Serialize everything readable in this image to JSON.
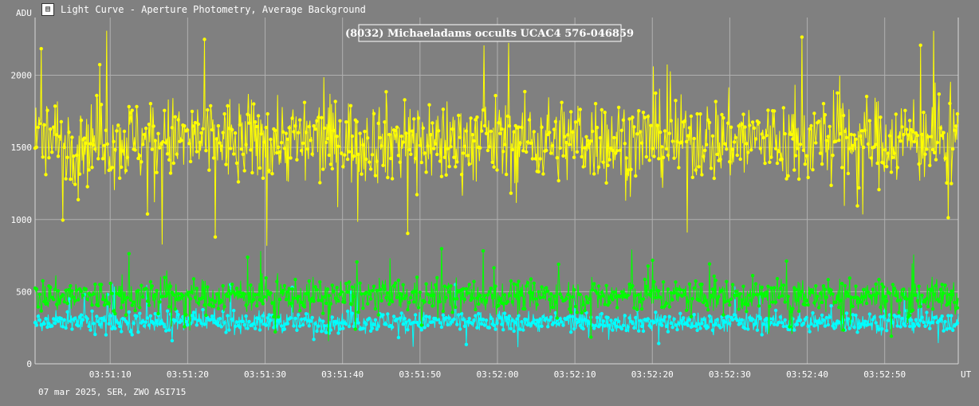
{
  "window": {
    "title": "Light Curve - Aperture Photometry, Average Background",
    "icon": "light-curve-app-icon"
  },
  "footer": {
    "text": "07 mar 2025, SER, ZWO ASI715"
  },
  "colors": {
    "background": "#808080",
    "grid": "#b0b0b0",
    "target": "#ffff00",
    "comparison": "#00ff00",
    "background_series": "#00ffff"
  },
  "chart_data": {
    "type": "line",
    "title": "(8032) Michaeladams occults UCAC4 576-046859",
    "ylabel": "ADU",
    "xlabel": "UT",
    "ylim": [
      0,
      2400
    ],
    "yticks": [
      0,
      500,
      1000,
      1500,
      2000
    ],
    "xlim": [
      "03:51:00.3",
      "03:52:59.5"
    ],
    "xticks": [
      "03:51:10",
      "03:51:20",
      "03:51:30",
      "03:51:40",
      "03:51:50",
      "03:52:00",
      "03:52:10",
      "03:52:20",
      "03:52:30",
      "03:52:40",
      "03:52:50"
    ],
    "grid": true,
    "series": [
      {
        "mean": 1550,
        "spread": 230,
        "spike_range": [
          800,
          2350
        ],
        "color": "#ffff00"
      },
      {
        "mean": 470,
        "spread": 90,
        "spike_range": [
          130,
          800
        ],
        "color": "#00ff00"
      },
      {
        "mean": 290,
        "spread": 55,
        "spike_range": [
          110,
          580
        ],
        "color": "#00ffff"
      }
    ],
    "samples": 1200
  }
}
